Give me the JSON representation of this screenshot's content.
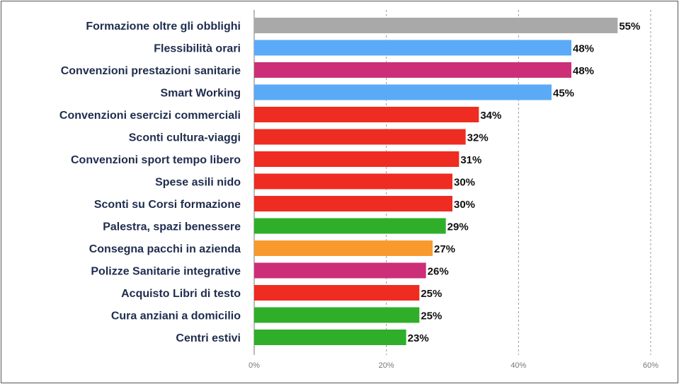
{
  "chart_data": {
    "type": "bar",
    "orientation": "horizontal",
    "categories": [
      "Formazione oltre gli obblighi",
      "Flessibilità orari",
      "Convenzioni prestazioni sanitarie",
      "Smart Working",
      "Convenzioni esercizi commerciali",
      "Sconti cultura-viaggi",
      "Convenzioni sport tempo libero",
      "Spese asili nido",
      "Sconti su Corsi formazione",
      "Palestra, spazi benessere",
      "Consegna pacchi in azienda",
      "Polizze Sanitarie integrative",
      "Acquisto Libri di testo",
      "Cura anziani a domicilio",
      "Centri estivi"
    ],
    "values": [
      55,
      48,
      48,
      45,
      34,
      32,
      31,
      30,
      30,
      29,
      27,
      26,
      25,
      25,
      23
    ],
    "value_labels": [
      "55%",
      "48%",
      "48%",
      "45%",
      "34%",
      "32%",
      "31%",
      "30%",
      "30%",
      "29%",
      "27%",
      "26%",
      "25%",
      "25%",
      "23%"
    ],
    "colors": [
      "#a9a9a9",
      "#5aaaf7",
      "#cc2f77",
      "#5aaaf7",
      "#ee2c22",
      "#ee2c22",
      "#ee2c22",
      "#ee2c22",
      "#ee2c22",
      "#2fae2a",
      "#f99a2c",
      "#cc2f77",
      "#ee2c22",
      "#2fae2a",
      "#2fae2a"
    ],
    "xlim": [
      0,
      60
    ],
    "xticks": [
      0,
      20,
      40,
      60
    ],
    "xtick_labels": [
      "0%",
      "20%",
      "40%",
      "60%"
    ],
    "grid": true,
    "title": "",
    "xlabel": "",
    "ylabel": ""
  }
}
